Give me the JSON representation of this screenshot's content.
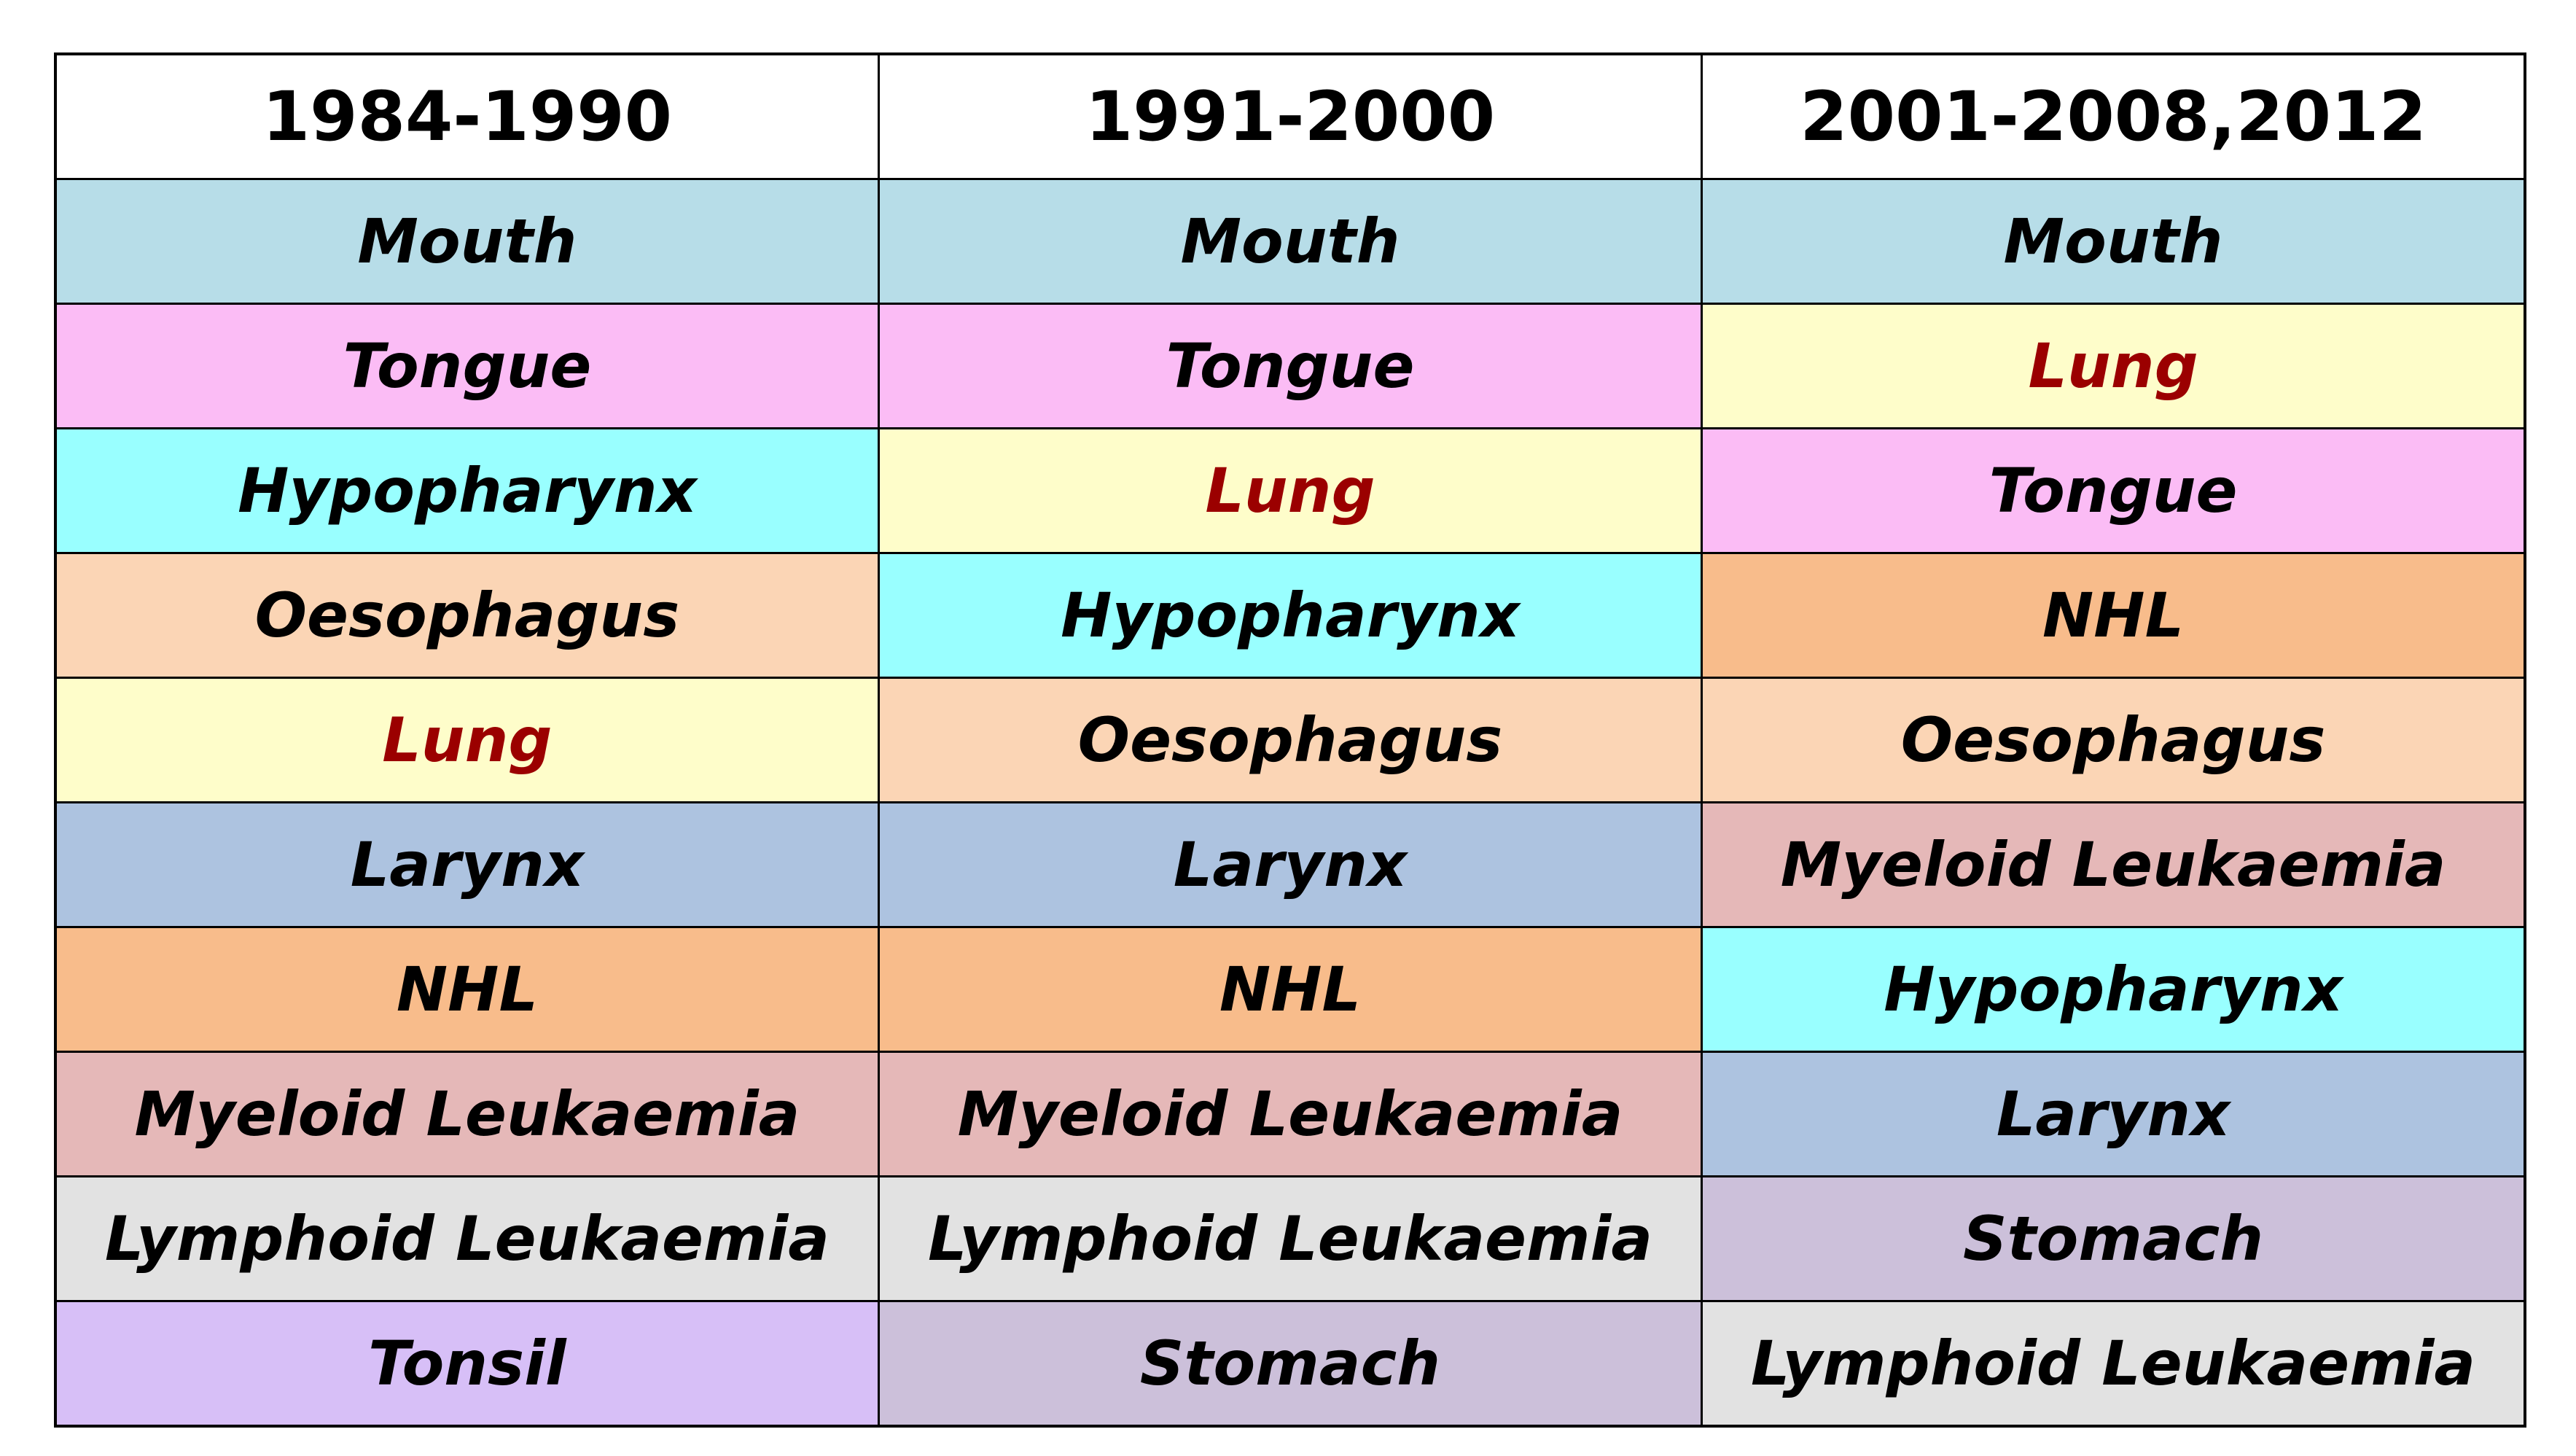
{
  "table": {
    "columns": [
      "1984-1990",
      "1991-2000",
      "2001-2008,2012"
    ],
    "rows": [
      [
        "Mouth",
        "Mouth",
        "Mouth"
      ],
      [
        "Tongue",
        "Tongue",
        "Lung"
      ],
      [
        "Hypopharynx",
        "Lung",
        "Tongue"
      ],
      [
        "Oesophagus",
        "Hypopharynx",
        "NHL"
      ],
      [
        "Lung",
        "Oesophagus",
        "Oesophagus"
      ],
      [
        "Larynx",
        "Larynx",
        "Myeloid Leukaemia"
      ],
      [
        "NHL",
        "NHL",
        "Hypopharynx"
      ],
      [
        "Myeloid Leukaemia",
        "Myeloid Leukaemia",
        "Larynx"
      ],
      [
        "Lymphoid Leukaemia",
        "Lymphoid Leukaemia",
        "Stomach"
      ],
      [
        "Tonsil",
        "Stomach",
        "Lymphoid Leukaemia"
      ]
    ]
  },
  "colors": {
    "Mouth": "#b7dde8",
    "Tongue": "#fbbcf5",
    "Hypopharynx": "#99ffff",
    "Oesophagus": "#fbd5b5",
    "Lung": "#fefdca",
    "Larynx": "#adc3e0",
    "NHL": "#f8bc8b",
    "Myeloid Leukaemia": "#e5b8b8",
    "Lymphoid Leukaemia": "#e2e2e2",
    "Tonsil": "#d7bff7",
    "Stomach": "#ccc0da"
  },
  "highlight_text_color": "#9b0000",
  "highlighted_sites": [
    "Lung"
  ]
}
